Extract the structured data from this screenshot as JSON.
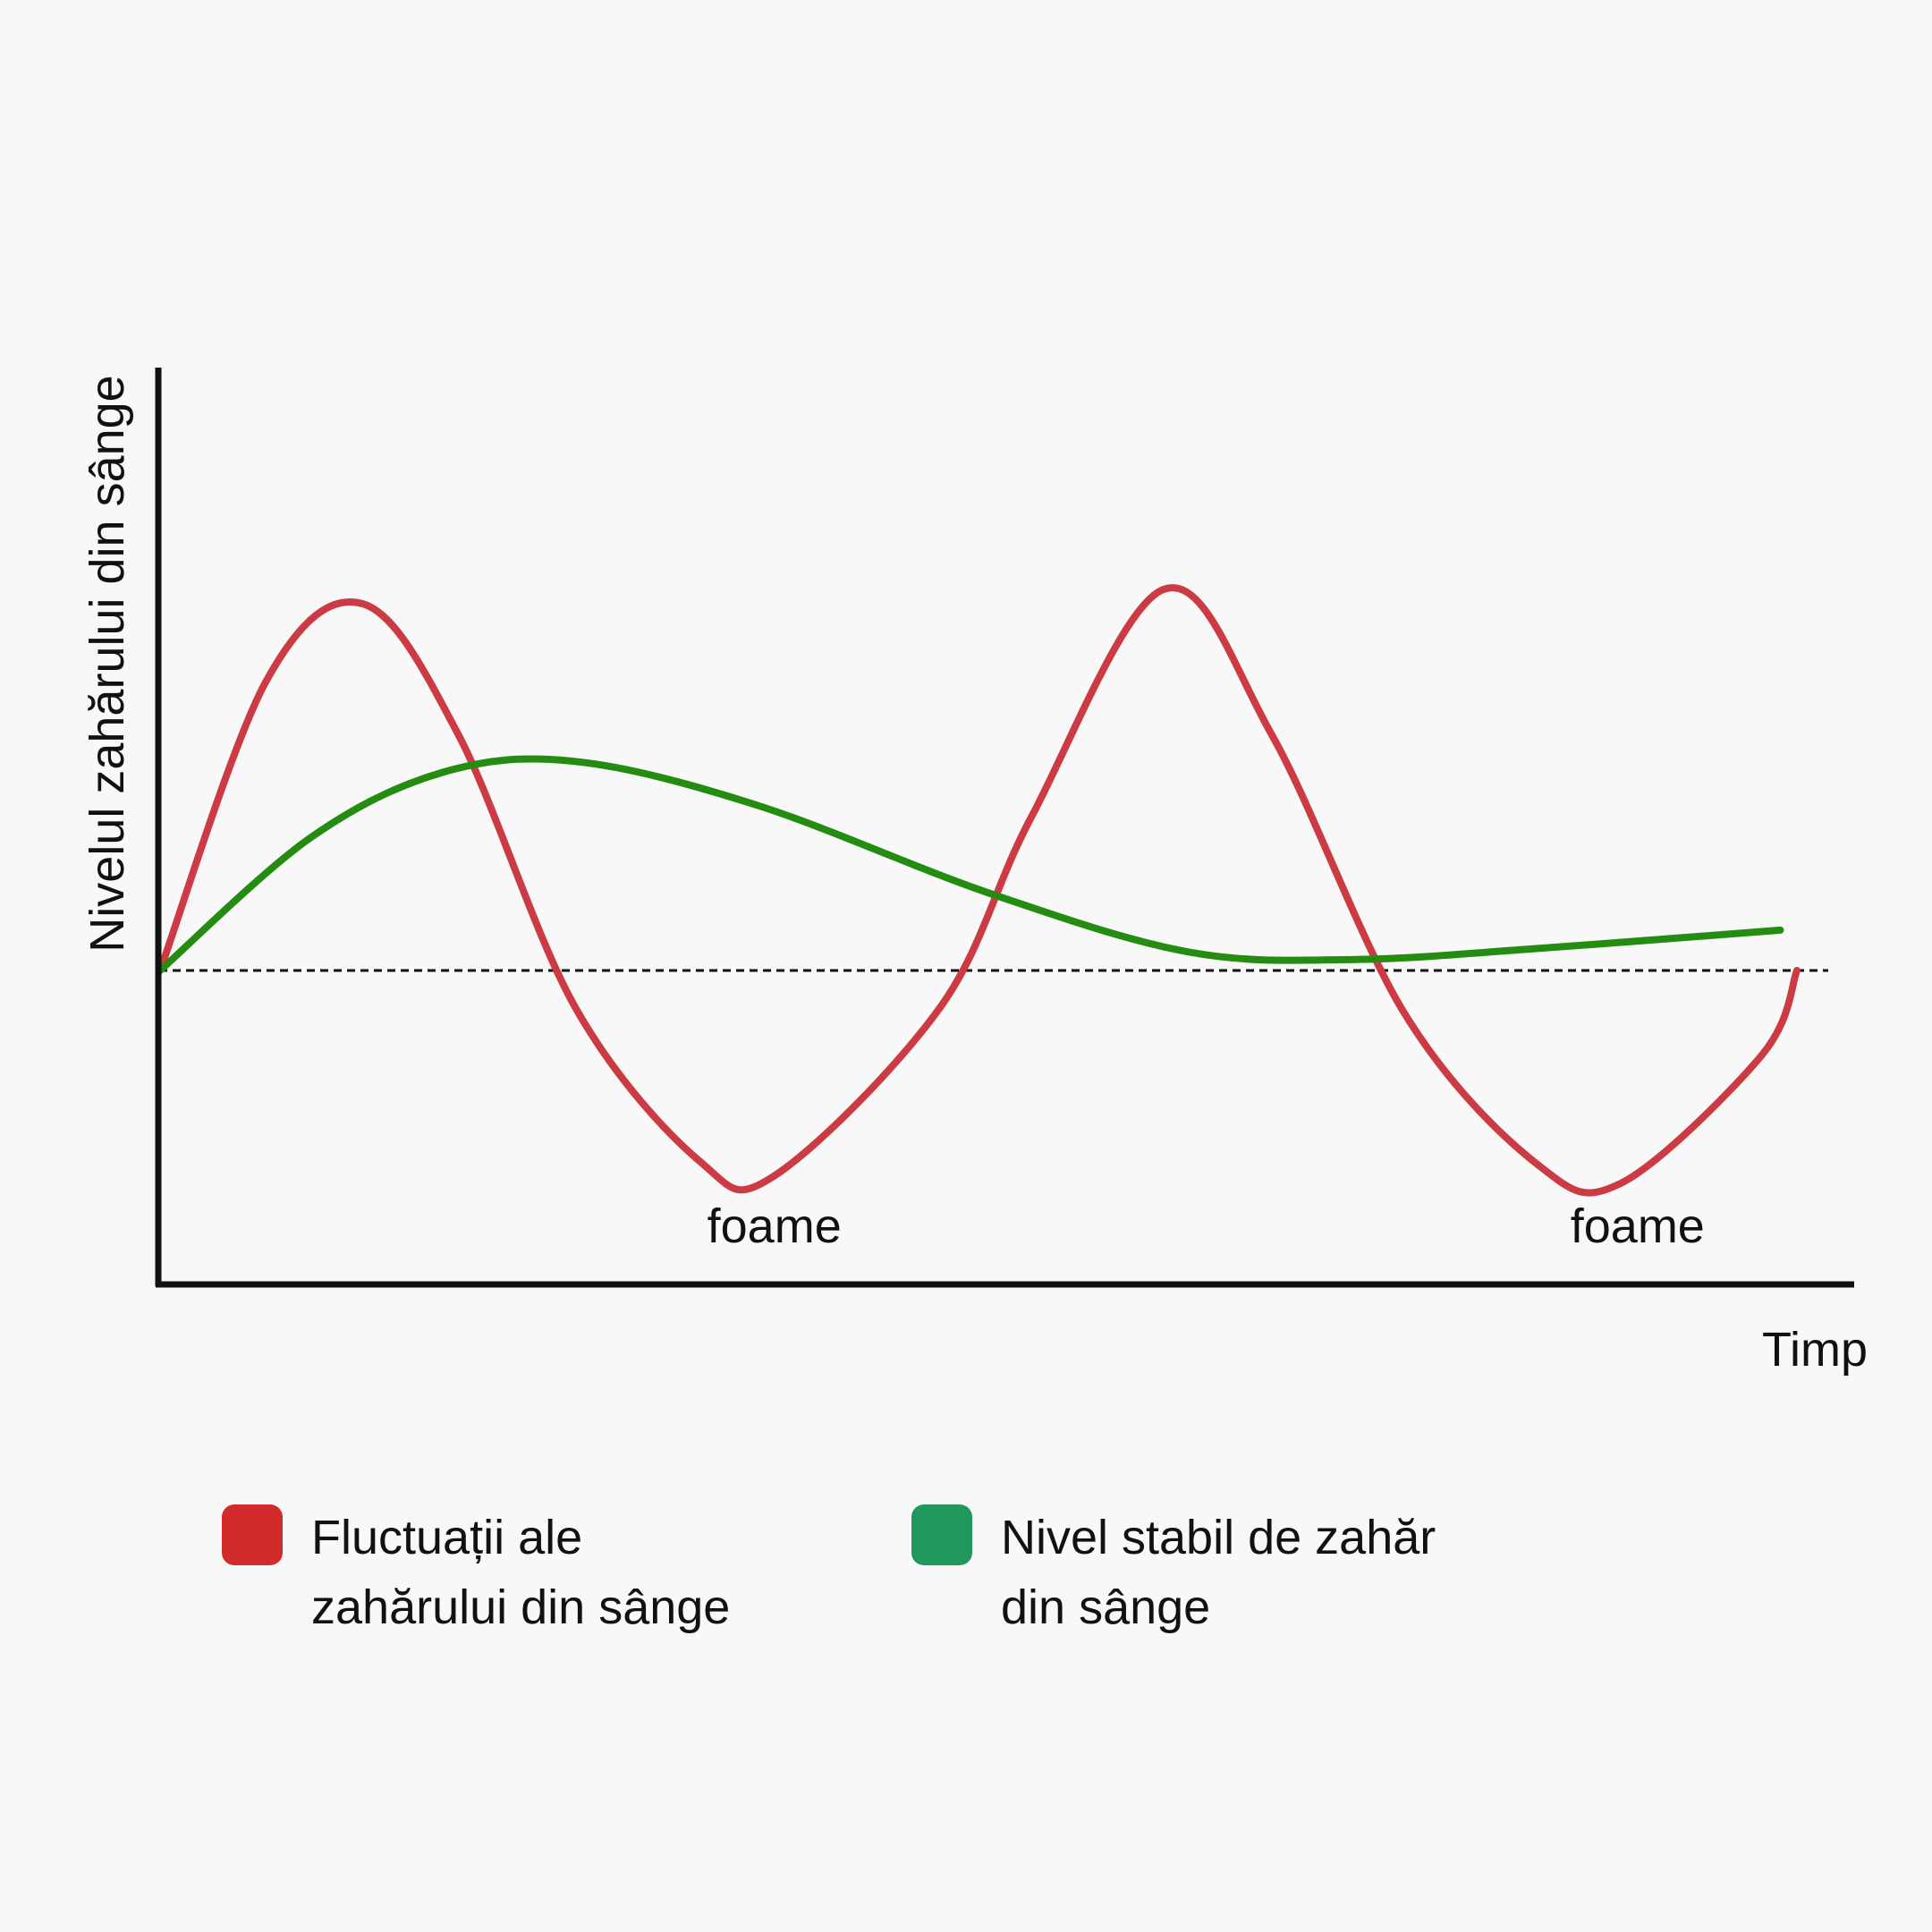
{
  "chart_data": {
    "type": "line",
    "ylabel": "Nivelul zahărului din sânge",
    "xlabel": "Timp",
    "xlim": [
      0,
      100
    ],
    "ylim": [
      -100,
      100
    ],
    "baseline": 0,
    "grid": false,
    "legend_placement": "bottom",
    "annotations": [
      {
        "text": "foame",
        "x": 37
      },
      {
        "text": "foame",
        "x": 89
      }
    ],
    "series": [
      {
        "name": "Fluctuații ale zahărului din sânge",
        "color": "#cc3a44",
        "points": [
          [
            0,
            0
          ],
          [
            6.4,
            79
          ],
          [
            12.2,
            100
          ],
          [
            18,
            64
          ],
          [
            25,
            -10
          ],
          [
            32.5,
            -52
          ],
          [
            37,
            -56
          ],
          [
            47,
            -10
          ],
          [
            52.5,
            42
          ],
          [
            60.5,
            104
          ],
          [
            67,
            64
          ],
          [
            75,
            -12
          ],
          [
            83,
            -53
          ],
          [
            88,
            -58
          ],
          [
            96.5,
            -23
          ],
          [
            98.6,
            0
          ]
        ]
      },
      {
        "name": "Nivel stabil de zahăr din sânge",
        "color": "#248c10",
        "points": [
          [
            0,
            0
          ],
          [
            9,
            36
          ],
          [
            17,
            54
          ],
          [
            25,
            57
          ],
          [
            36,
            45
          ],
          [
            50,
            21
          ],
          [
            62,
            5
          ],
          [
            72,
            3
          ],
          [
            83,
            6
          ],
          [
            97.6,
            11
          ]
        ]
      }
    ]
  },
  "legend": {
    "items": [
      {
        "label_line1": "Fluctuații ale",
        "label_line2": "zahărului din sânge",
        "color": "#d22b2b"
      },
      {
        "label_line1": "Nivel stabil de zahăr",
        "label_line2": "din sânge",
        "color": "#20985c"
      }
    ]
  }
}
